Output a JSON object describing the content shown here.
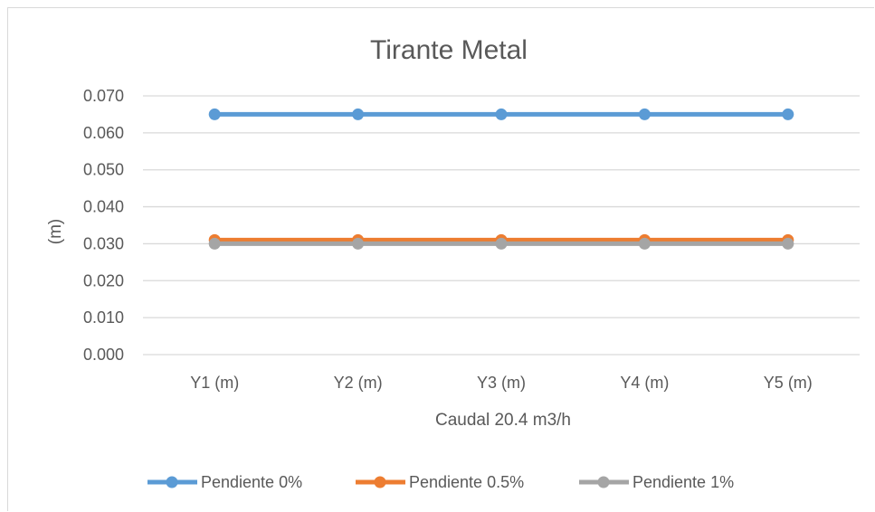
{
  "chart_data": {
    "type": "line",
    "title": "Tirante Metal",
    "xlabel": "Caudal 20.4 m3/h",
    "ylabel": "(m)",
    "categories": [
      "Y1 (m)",
      "Y2 (m)",
      "Y3 (m)",
      "Y4 (m)",
      "Y5 (m)"
    ],
    "ylim": [
      0,
      0.07
    ],
    "yticks": [
      "0.000",
      "0.010",
      "0.020",
      "0.030",
      "0.040",
      "0.050",
      "0.060",
      "0.070"
    ],
    "grid": true,
    "legend_position": "bottom",
    "series": [
      {
        "name": "Pendiente 0%",
        "color": "#5b9bd5",
        "values": [
          0.065,
          0.065,
          0.065,
          0.065,
          0.065
        ]
      },
      {
        "name": "Pendiente 0.5%",
        "color": "#ed7d31",
        "values": [
          0.031,
          0.031,
          0.031,
          0.031,
          0.031
        ]
      },
      {
        "name": "Pendiente 1%",
        "color": "#a5a5a5",
        "values": [
          0.03,
          0.03,
          0.03,
          0.03,
          0.03
        ]
      }
    ]
  }
}
